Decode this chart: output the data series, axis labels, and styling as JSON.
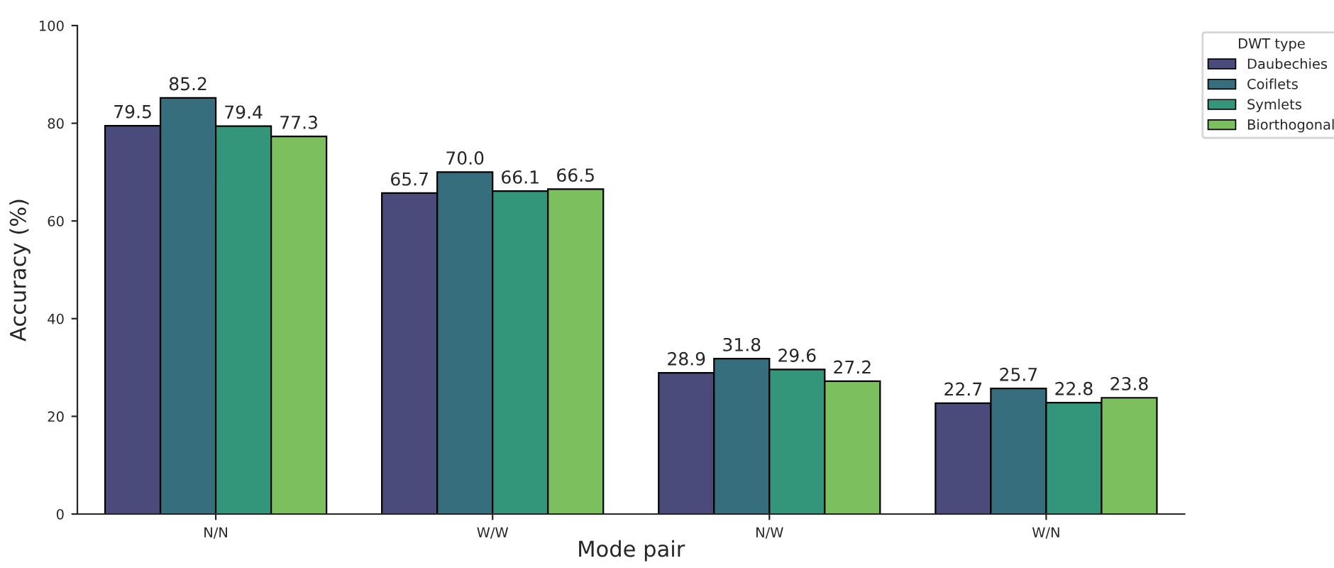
{
  "chart_data": {
    "type": "bar",
    "xlabel": "Mode pair",
    "ylabel": "Accuracy (%)",
    "legend_title": "DWT type",
    "categories": [
      "N/N",
      "W/W",
      "N/W",
      "W/N"
    ],
    "series": [
      {
        "name": "Daubechies",
        "color": "#4a4a7b",
        "values": [
          79.5,
          65.7,
          28.9,
          22.7
        ],
        "value_labels": [
          "79.5",
          "65.7",
          "28.9",
          "22.7"
        ]
      },
      {
        "name": "Coiflets",
        "color": "#366e7e",
        "values": [
          85.2,
          70.0,
          31.8,
          25.7
        ],
        "value_labels": [
          "85.2",
          "70.0",
          "31.8",
          "25.7"
        ]
      },
      {
        "name": "Symlets",
        "color": "#33967a",
        "values": [
          79.4,
          66.1,
          29.6,
          22.8
        ],
        "value_labels": [
          "79.4",
          "66.1",
          "29.6",
          "22.8"
        ]
      },
      {
        "name": "Biorthogonal",
        "color": "#7bbf5e",
        "values": [
          77.3,
          66.5,
          27.2,
          23.8
        ],
        "value_labels": [
          "77.3",
          "66.5",
          "27.2",
          "23.8"
        ]
      }
    ],
    "ylim": [
      0,
      100
    ],
    "yticks": [
      0,
      20,
      40,
      60,
      80,
      100
    ],
    "legend": "top right",
    "grid": false
  }
}
